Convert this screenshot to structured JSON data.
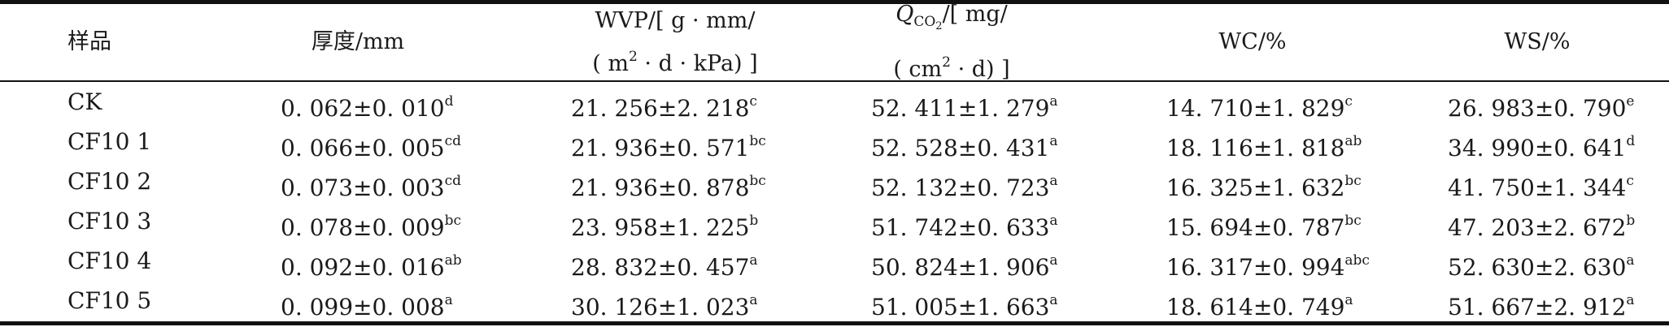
{
  "headers": {
    "sample": "样品",
    "thickness": "厚度/mm",
    "wvp_line1": "WVP/[ g · mm/",
    "wvp_line2_pre": "( m",
    "wvp_line2_sup": "2",
    "wvp_line2_post": " · d · kPa) ]",
    "q_symbol": "Q",
    "q_sub_pre": "CO",
    "q_sub_num": "2",
    "q_line1_post": "/[ mg/",
    "q_line2_pre": "( cm",
    "q_line2_sup": "2",
    "q_line2_post": " · d) ]",
    "wc": "WC/%",
    "ws": "WS/%"
  },
  "rows": [
    {
      "sample": "CK",
      "thickness": {
        "v": "0. 062±0. 010",
        "s": "d"
      },
      "wvp": {
        "v": "21. 256±2. 218",
        "s": "c"
      },
      "qco2": {
        "v": "52. 411±1. 279",
        "s": "a"
      },
      "wc": {
        "v": "14. 710±1. 829",
        "s": "c"
      },
      "ws": {
        "v": "26. 983±0. 790",
        "s": "e"
      }
    },
    {
      "sample": "CF10 1",
      "thickness": {
        "v": "0. 066±0. 005",
        "s": "cd"
      },
      "wvp": {
        "v": "21. 936±0. 571",
        "s": "bc"
      },
      "qco2": {
        "v": "52. 528±0. 431",
        "s": "a"
      },
      "wc": {
        "v": "18. 116±1. 818",
        "s": "ab"
      },
      "ws": {
        "v": "34. 990±0. 641",
        "s": "d"
      }
    },
    {
      "sample": "CF10 2",
      "thickness": {
        "v": "0. 073±0. 003",
        "s": "cd"
      },
      "wvp": {
        "v": "21. 936±0. 878",
        "s": "bc"
      },
      "qco2": {
        "v": "52. 132±0. 723",
        "s": "a"
      },
      "wc": {
        "v": "16. 325±1. 632",
        "s": "bc"
      },
      "ws": {
        "v": "41. 750±1. 344",
        "s": "c"
      }
    },
    {
      "sample": "CF10 3",
      "thickness": {
        "v": "0. 078±0. 009",
        "s": "bc"
      },
      "wvp": {
        "v": "23. 958±1. 225",
        "s": "b"
      },
      "qco2": {
        "v": "51. 742±0. 633",
        "s": "a"
      },
      "wc": {
        "v": "15. 694±0. 787",
        "s": "bc"
      },
      "ws": {
        "v": "47. 203±2. 672",
        "s": "b"
      }
    },
    {
      "sample": "CF10 4",
      "thickness": {
        "v": "0. 092±0. 016",
        "s": "ab"
      },
      "wvp": {
        "v": "28. 832±0. 457",
        "s": "a"
      },
      "qco2": {
        "v": "50. 824±1. 906",
        "s": "a"
      },
      "wc": {
        "v": "16. 317±0. 994",
        "s": "abc"
      },
      "ws": {
        "v": "52. 630±2. 630",
        "s": "a"
      }
    },
    {
      "sample": "CF10 5",
      "thickness": {
        "v": "0. 099±0. 008",
        "s": "a"
      },
      "wvp": {
        "v": "30. 126±1. 023",
        "s": "a"
      },
      "qco2": {
        "v": "51. 005±1. 663",
        "s": "a"
      },
      "wc": {
        "v": "18. 614±0. 749",
        "s": "a"
      },
      "ws": {
        "v": "51. 667±2. 912",
        "s": "a"
      }
    }
  ]
}
